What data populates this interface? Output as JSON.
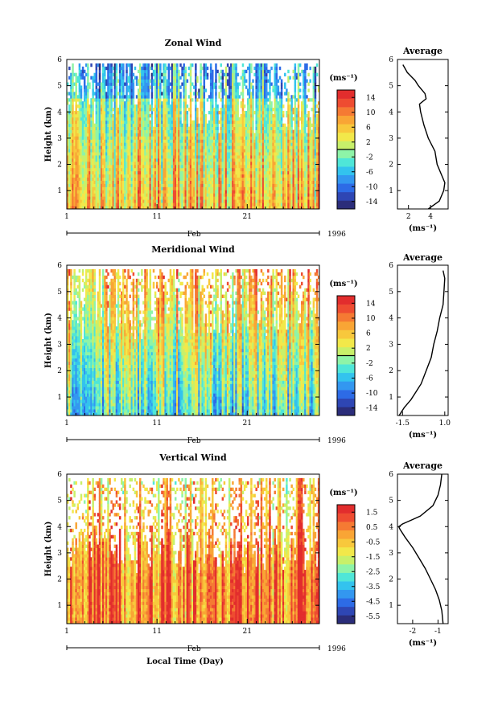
{
  "colors": {
    "scale": [
      "#2b2d7a",
      "#2e46b4",
      "#2d6be6",
      "#3397f0",
      "#33c3ee",
      "#4fe6d8",
      "#8ef4a8",
      "#c8f06a",
      "#f2e84a",
      "#f8c83c",
      "#f9a535",
      "#f57a33",
      "#ee4c31",
      "#e22d2d"
    ]
  },
  "chart_data": [
    {
      "type": "heatmap",
      "title": "Zonal Wind",
      "ylabel": "Height (km)",
      "xlabel": "",
      "x_ticks": [
        "1",
        "11",
        "21"
      ],
      "x_range": [
        1,
        29
      ],
      "month": "Feb",
      "year": "1996",
      "y_ticks": [
        "1",
        "2",
        "3",
        "4",
        "5",
        "6"
      ],
      "ylim": [
        0.3,
        6.0
      ],
      "colorbar": {
        "unit": "(ms⁻¹)",
        "labels": [
          "14",
          "10",
          "6",
          "2",
          "-2",
          "-6",
          "-10",
          "-14"
        ],
        "range": [
          -16,
          16
        ],
        "contour": 0
      },
      "profile": {
        "title": "Average",
        "xlabel": "(ms⁻¹)",
        "x_ticks": [
          "2",
          "4"
        ],
        "x_tick_values": [
          2,
          4
        ],
        "xlim": [
          1.0,
          5.6
        ],
        "y_ticks": [
          "1",
          "2",
          "3",
          "4",
          "5",
          "6"
        ],
        "heights": [
          0.3,
          0.6,
          1.0,
          1.3,
          1.6,
          2.0,
          2.5,
          3.0,
          3.5,
          4.0,
          4.3,
          4.5,
          4.7,
          5.0,
          5.2,
          5.5,
          5.8
        ],
        "values": [
          3.8,
          4.8,
          5.2,
          5.3,
          5.0,
          4.6,
          4.4,
          3.8,
          3.4,
          3.1,
          3.0,
          3.6,
          3.5,
          2.9,
          2.6,
          1.9,
          1.5
        ]
      }
    },
    {
      "type": "heatmap",
      "title": "Meridional Wind",
      "ylabel": "Height (km)",
      "xlabel": "",
      "x_ticks": [
        "1",
        "11",
        "21"
      ],
      "x_range": [
        1,
        29
      ],
      "month": "Feb",
      "year": "1996",
      "y_ticks": [
        "1",
        "2",
        "3",
        "4",
        "5",
        "6"
      ],
      "ylim": [
        0.3,
        6.0
      ],
      "colorbar": {
        "unit": "(ms⁻¹)",
        "labels": [
          "14",
          "10",
          "6",
          "2",
          "-2",
          "-6",
          "-10",
          "-14"
        ],
        "range": [
          -16,
          16
        ],
        "contour": 0
      },
      "profile": {
        "title": "Average",
        "xlabel": "(ms⁻¹)",
        "x_ticks": [
          "-1.5",
          "1.0"
        ],
        "x_tick_values": [
          -1.5,
          1.0
        ],
        "xlim": [
          -1.8,
          1.2
        ],
        "y_ticks": [
          "1",
          "2",
          "3",
          "4",
          "5",
          "6"
        ],
        "heights": [
          0.3,
          0.6,
          0.9,
          1.2,
          1.5,
          2.0,
          2.5,
          3.0,
          3.5,
          4.0,
          4.5,
          5.0,
          5.5,
          5.8
        ],
        "values": [
          -1.7,
          -1.4,
          -1.0,
          -0.7,
          -0.4,
          -0.1,
          0.2,
          0.35,
          0.55,
          0.7,
          0.9,
          0.95,
          1.0,
          0.9
        ]
      }
    },
    {
      "type": "heatmap",
      "title": "Vertical Wind",
      "ylabel": "Height (km)",
      "xlabel": "Local Time (Day)",
      "x_ticks": [
        "1",
        "11",
        "21"
      ],
      "x_range": [
        1,
        29
      ],
      "month": "Feb",
      "year": "1996",
      "y_ticks": [
        "1",
        "2",
        "3",
        "4",
        "5",
        "6"
      ],
      "ylim": [
        0.3,
        6.0
      ],
      "colorbar": {
        "unit": "(ms⁻¹)",
        "labels": [
          "1.5",
          "0.5",
          "-0.5",
          "-1.5",
          "-2.5",
          "-3.5",
          "-4.5",
          "-5.5"
        ],
        "range": [
          -6.0,
          2.0
        ]
      },
      "profile": {
        "title": "Average",
        "xlabel": "(ms⁻¹)",
        "x_ticks": [
          "-2",
          "-1"
        ],
        "x_tick_values": [
          -2,
          -1
        ],
        "xlim": [
          -2.6,
          -0.6
        ],
        "y_ticks": [
          "1",
          "2",
          "3",
          "4",
          "5",
          "6"
        ],
        "heights": [
          0.3,
          0.8,
          1.2,
          1.6,
          2.0,
          2.4,
          2.8,
          3.2,
          3.6,
          3.9,
          4.0,
          4.1,
          4.4,
          4.8,
          5.2,
          5.6,
          6.0
        ],
        "values": [
          -0.8,
          -0.85,
          -0.95,
          -1.1,
          -1.3,
          -1.5,
          -1.75,
          -2.0,
          -2.3,
          -2.5,
          -2.55,
          -2.4,
          -1.7,
          -1.2,
          -1.0,
          -0.9,
          -0.85
        ]
      }
    }
  ]
}
